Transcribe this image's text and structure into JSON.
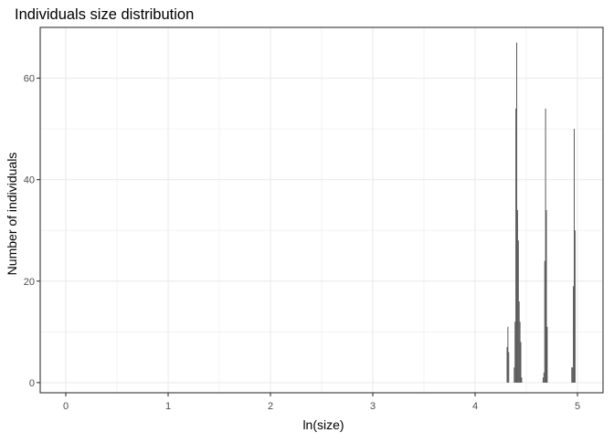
{
  "chart_data": {
    "type": "bar",
    "title": "Individuals size distribution",
    "xlabel": "ln(size)",
    "ylabel": "Number of individuals",
    "xlim": [
      -0.25,
      5.25
    ],
    "ylim": [
      -2,
      70
    ],
    "x_ticks": [
      0,
      1,
      2,
      3,
      4,
      5
    ],
    "y_ticks": [
      0,
      20,
      40,
      60
    ],
    "x_minor_ticks": [
      0.5,
      1.5,
      2.5,
      3.5,
      4.5
    ],
    "y_minor_ticks": [
      10,
      30,
      50
    ],
    "bin_width": 0.008,
    "grid": true,
    "legend": "none",
    "bar_color": "#595959",
    "panel_border_color": "#333333",
    "grid_color": "#ebebeb",
    "series": [
      {
        "x": [
          4.312,
          4.32,
          4.328,
          4.382,
          4.39,
          4.398,
          4.406,
          4.414,
          4.422,
          4.43,
          4.438,
          4.446,
          4.454,
          4.664,
          4.672,
          4.68,
          4.688,
          4.696,
          4.704,
          4.944,
          4.952,
          4.96,
          4.968,
          4.976
        ],
        "values": [
          7,
          11,
          6,
          3,
          12,
          54,
          67,
          34,
          28,
          16,
          12,
          8,
          1,
          1,
          2,
          24,
          54,
          34,
          11,
          3,
          3,
          19,
          50,
          30
        ]
      }
    ]
  }
}
